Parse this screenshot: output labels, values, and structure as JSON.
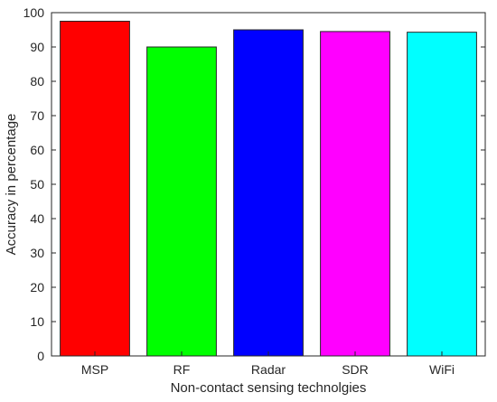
{
  "chart_data": {
    "type": "bar",
    "title": "",
    "xlabel": "Non-contact sensing technolgies",
    "ylabel": "Accuracy in percentage",
    "categories": [
      "MSP",
      "RF",
      "Radar",
      "SDR",
      "WiFi"
    ],
    "values": [
      97.5,
      90,
      95,
      94.5,
      94.3
    ],
    "colors": [
      "#ff0000",
      "#00ff00",
      "#0000ff",
      "#ff00ff",
      "#00ffff"
    ],
    "ylim": [
      0,
      100
    ],
    "yticks": [
      0,
      10,
      20,
      30,
      40,
      50,
      60,
      70,
      80,
      90,
      100
    ],
    "grid": false,
    "legend": "none"
  }
}
